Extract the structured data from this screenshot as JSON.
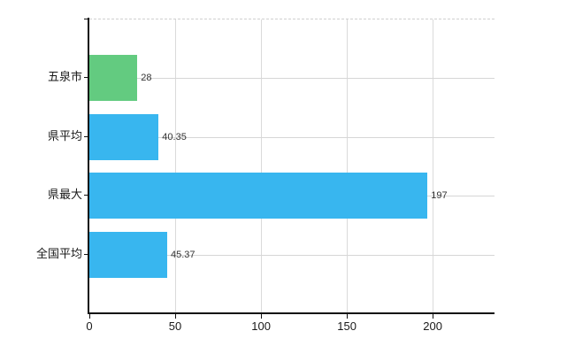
{
  "chart_data": {
    "type": "bar",
    "orientation": "horizontal",
    "title": "",
    "categories": [
      "五泉市",
      "県平均",
      "県最大",
      "全国平均"
    ],
    "series": [
      {
        "name": "",
        "values": [
          28,
          40.35,
          197,
          45.37
        ]
      }
    ],
    "value_labels": [
      "28",
      "40.35",
      "197",
      "45.37"
    ],
    "bar_colors": [
      "#63cb80",
      "#38b6ef",
      "#38b6ef",
      "#38b6ef"
    ],
    "x_axis": {
      "ticks": [
        0,
        50,
        100,
        150,
        200
      ],
      "tick_labels": [
        "0",
        "50",
        "100",
        "150",
        "200"
      ],
      "range": [
        0,
        236
      ]
    },
    "y_axis": {
      "label": ""
    },
    "legend": null,
    "grid": {
      "vertical_gridlines": true,
      "horizontal_row_lines": true,
      "gridline_color": "#d8d8d8",
      "top_border_style": "dashed"
    }
  },
  "colors": {
    "highlight_bar": "#63cb80",
    "default_bar": "#38b6ef",
    "axis": "#111111",
    "grid": "#d8d8d8",
    "background": "#ffffff",
    "value_text": "#333333",
    "axis_text": "#1a1a1a"
  }
}
